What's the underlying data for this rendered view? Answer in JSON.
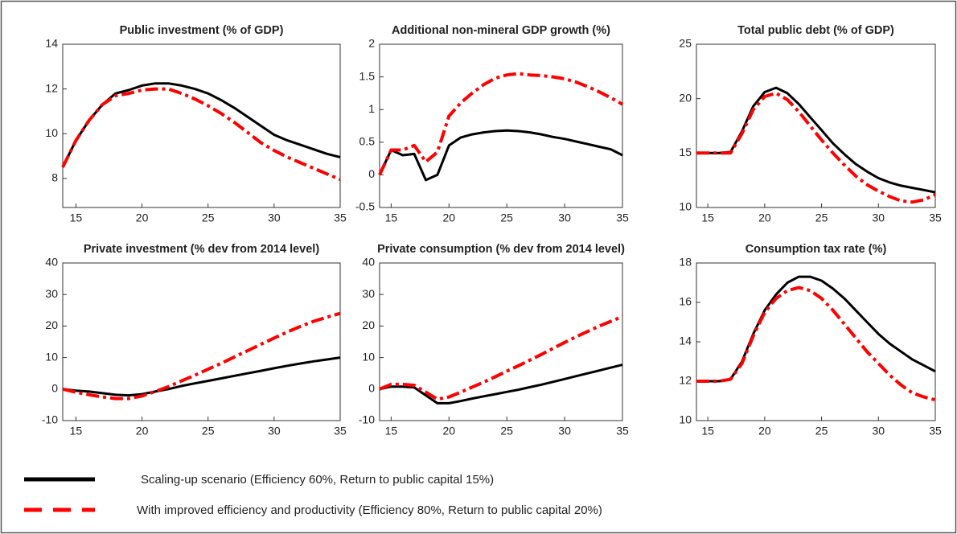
{
  "chart_data": [
    {
      "type": "line",
      "title": "Public investment (% of GDP)",
      "x": [
        14,
        15,
        16,
        17,
        18,
        19,
        20,
        21,
        22,
        23,
        24,
        25,
        26,
        27,
        28,
        29,
        30,
        31,
        32,
        33,
        34,
        35
      ],
      "xlim": [
        14,
        35
      ],
      "xticks": [
        15,
        20,
        25,
        30,
        35
      ],
      "ylim": [
        6.7,
        14
      ],
      "yticks": [
        8,
        10,
        12,
        14
      ],
      "series": [
        {
          "color": "#000000",
          "dashed": false,
          "values": [
            8.5,
            9.7,
            10.6,
            11.3,
            11.8,
            11.95,
            12.15,
            12.25,
            12.25,
            12.15,
            12.0,
            11.8,
            11.5,
            11.15,
            10.75,
            10.35,
            9.95,
            9.7,
            9.5,
            9.3,
            9.1,
            8.95
          ]
        },
        {
          "color": "#ff0000",
          "dashed": true,
          "values": [
            8.5,
            9.7,
            10.6,
            11.3,
            11.7,
            11.8,
            11.95,
            12.0,
            12.0,
            11.8,
            11.55,
            11.25,
            10.9,
            10.5,
            10.05,
            9.6,
            9.25,
            8.95,
            8.7,
            8.45,
            8.2,
            7.95
          ]
        }
      ]
    },
    {
      "type": "line",
      "title": "Additional non-mineral GDP growth (%)",
      "x": [
        14,
        15,
        16,
        17,
        18,
        19,
        20,
        21,
        22,
        23,
        24,
        25,
        26,
        27,
        28,
        29,
        30,
        31,
        32,
        33,
        34,
        35
      ],
      "xlim": [
        14,
        35
      ],
      "xticks": [
        15,
        20,
        25,
        30,
        35
      ],
      "ylim": [
        -0.5,
        2
      ],
      "yticks": [
        -0.5,
        0,
        0.5,
        1,
        1.5,
        2
      ],
      "series": [
        {
          "color": "#000000",
          "dashed": false,
          "values": [
            0,
            0.38,
            0.3,
            0.32,
            -0.08,
            0.0,
            0.45,
            0.57,
            0.62,
            0.65,
            0.67,
            0.68,
            0.67,
            0.65,
            0.62,
            0.58,
            0.55,
            0.51,
            0.47,
            0.43,
            0.39,
            0.3
          ]
        },
        {
          "color": "#ff0000",
          "dashed": true,
          "values": [
            0,
            0.38,
            0.38,
            0.45,
            0.2,
            0.35,
            0.9,
            1.1,
            1.25,
            1.38,
            1.48,
            1.53,
            1.55,
            1.53,
            1.52,
            1.5,
            1.47,
            1.42,
            1.35,
            1.27,
            1.18,
            1.08
          ]
        }
      ]
    },
    {
      "type": "line",
      "title": "Total public debt (% of GDP)",
      "x": [
        14,
        15,
        16,
        17,
        18,
        19,
        20,
        21,
        22,
        23,
        24,
        25,
        26,
        27,
        28,
        29,
        30,
        31,
        32,
        33,
        34,
        35
      ],
      "xlim": [
        14,
        35
      ],
      "xticks": [
        15,
        20,
        25,
        30,
        35
      ],
      "ylim": [
        10,
        25
      ],
      "yticks": [
        10,
        15,
        20,
        25
      ],
      "series": [
        {
          "color": "#000000",
          "dashed": false,
          "values": [
            15,
            15,
            15,
            15.1,
            17,
            19.3,
            20.6,
            21,
            20.5,
            19.5,
            18.3,
            17.1,
            15.9,
            14.9,
            14.0,
            13.3,
            12.7,
            12.3,
            12.0,
            11.8,
            11.6,
            11.4
          ]
        },
        {
          "color": "#ff0000",
          "dashed": true,
          "values": [
            15,
            15,
            15,
            15.0,
            16.8,
            19.0,
            20.2,
            20.5,
            19.9,
            18.8,
            17.5,
            16.2,
            15.0,
            13.9,
            12.9,
            12.1,
            11.5,
            11.0,
            10.6,
            10.5,
            10.7,
            11.2
          ]
        }
      ]
    },
    {
      "type": "line",
      "title": "Private investment (% dev from 2014 level)",
      "x": [
        14,
        15,
        16,
        17,
        18,
        19,
        20,
        21,
        22,
        23,
        24,
        25,
        26,
        27,
        28,
        29,
        30,
        31,
        32,
        33,
        34,
        35
      ],
      "xlim": [
        14,
        35
      ],
      "xticks": [
        15,
        20,
        25,
        30,
        35
      ],
      "ylim": [
        -10,
        40
      ],
      "yticks": [
        -10,
        0,
        10,
        20,
        30,
        40
      ],
      "series": [
        {
          "color": "#000000",
          "dashed": false,
          "values": [
            0,
            -0.5,
            -0.8,
            -1.3,
            -1.8,
            -2,
            -1.6,
            -0.8,
            0,
            1,
            1.8,
            2.6,
            3.4,
            4.2,
            5,
            5.8,
            6.6,
            7.4,
            8.1,
            8.8,
            9.4,
            10
          ]
        },
        {
          "color": "#ff0000",
          "dashed": true,
          "values": [
            0,
            -1,
            -1.8,
            -2.5,
            -3,
            -3,
            -2.2,
            -0.8,
            0.8,
            2.6,
            4.4,
            6.3,
            8.2,
            10.2,
            12.2,
            14.2,
            16.2,
            18.1,
            19.9,
            21.5,
            22.8,
            24
          ]
        }
      ]
    },
    {
      "type": "line",
      "title": "Private consumption (% dev from 2014 level)",
      "x": [
        14,
        15,
        16,
        17,
        18,
        19,
        20,
        21,
        22,
        23,
        24,
        25,
        26,
        27,
        28,
        29,
        30,
        31,
        32,
        33,
        34,
        35
      ],
      "xlim": [
        14,
        35
      ],
      "xticks": [
        15,
        20,
        25,
        30,
        35
      ],
      "ylim": [
        -10,
        40
      ],
      "yticks": [
        -10,
        0,
        10,
        20,
        30,
        40
      ],
      "series": [
        {
          "color": "#000000",
          "dashed": false,
          "values": [
            0,
            0.8,
            0.8,
            0.5,
            -2,
            -4.5,
            -4.5,
            -3.8,
            -3,
            -2.3,
            -1.6,
            -0.9,
            -0.2,
            0.6,
            1.4,
            2.3,
            3.2,
            4.1,
            5,
            5.9,
            6.8,
            7.7
          ]
        },
        {
          "color": "#ff0000",
          "dashed": true,
          "values": [
            0,
            1.5,
            1.5,
            1.2,
            -1,
            -3.2,
            -2.5,
            -1,
            0.6,
            2.2,
            3.9,
            5.7,
            7.4,
            9.2,
            11,
            12.9,
            14.8,
            16.6,
            18.3,
            20,
            21.5,
            23
          ]
        }
      ]
    },
    {
      "type": "line",
      "title": "Consumption tax rate (%)",
      "x": [
        14,
        15,
        16,
        17,
        18,
        19,
        20,
        21,
        22,
        23,
        24,
        25,
        26,
        27,
        28,
        29,
        30,
        31,
        32,
        33,
        34,
        35
      ],
      "xlim": [
        14,
        35
      ],
      "xticks": [
        15,
        20,
        25,
        30,
        35
      ],
      "ylim": [
        10,
        18
      ],
      "yticks": [
        10,
        12,
        14,
        16,
        18
      ],
      "series": [
        {
          "color": "#000000",
          "dashed": false,
          "values": [
            12,
            12,
            12,
            12.1,
            13,
            14.4,
            15.6,
            16.4,
            17,
            17.3,
            17.3,
            17.1,
            16.7,
            16.2,
            15.6,
            15.0,
            14.4,
            13.9,
            13.5,
            13.1,
            12.8,
            12.5
          ]
        },
        {
          "color": "#ff0000",
          "dashed": true,
          "values": [
            12,
            12,
            12,
            12.1,
            12.9,
            14.3,
            15.5,
            16.2,
            16.6,
            16.75,
            16.6,
            16.2,
            15.6,
            14.9,
            14.2,
            13.5,
            12.9,
            12.3,
            11.8,
            11.4,
            11.2,
            11.05
          ]
        }
      ]
    }
  ],
  "legend": [
    {
      "name": "Scaling-up scenario (Efficiency 60%, Return to public capital 15%)",
      "color": "#000000",
      "dashed": false
    },
    {
      "name": "With improved efficiency and productivity (Efficiency 80%, Return to public capital 20%)",
      "color": "#ff0000",
      "dashed": true
    }
  ]
}
